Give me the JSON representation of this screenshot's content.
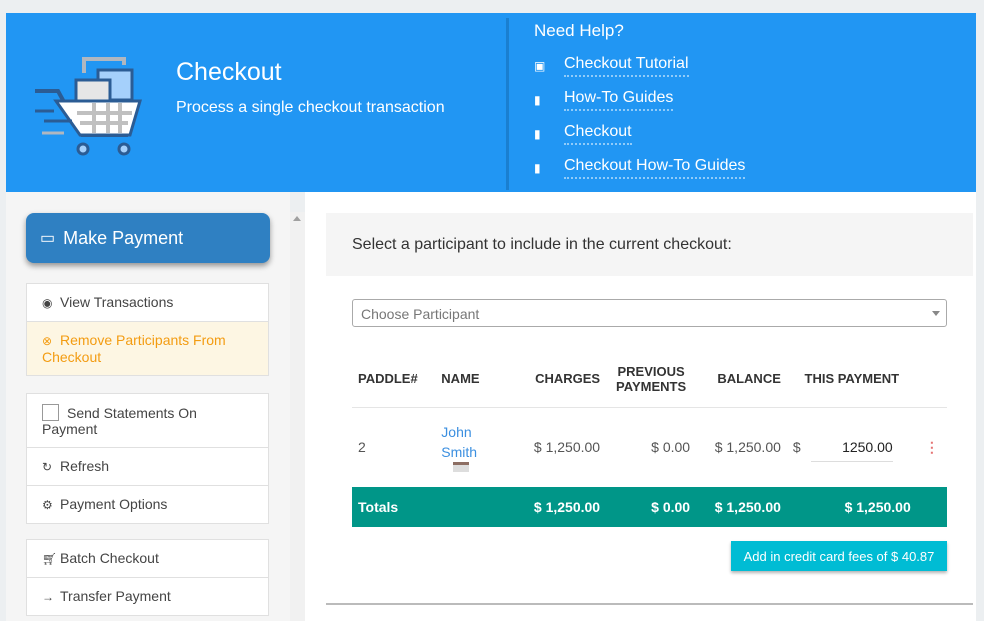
{
  "header": {
    "title": "Checkout",
    "subtitle": "Process a single checkout transaction"
  },
  "help": {
    "title": "Need Help?",
    "links": [
      {
        "icon": "video-icon",
        "label": "Checkout Tutorial"
      },
      {
        "icon": "book-icon",
        "label": "How-To Guides"
      },
      {
        "icon": "book-icon",
        "label": "Checkout"
      },
      {
        "icon": "book-icon",
        "label": "Checkout How-To Guides"
      }
    ]
  },
  "sidebar": {
    "make_payment": "Make Payment",
    "view_transactions": "View Transactions",
    "remove_participants": "Remove Participants From Checkout",
    "send_statements": "Send Statements On Payment",
    "refresh": "Refresh",
    "payment_options": "Payment Options",
    "batch_checkout": "Batch Checkout",
    "transfer_payment": "Transfer Payment"
  },
  "main": {
    "prompt": "Select a participant to include in the current checkout:",
    "participant_placeholder": "Choose Participant",
    "columns": [
      "PADDLE#",
      "NAME",
      "CHARGES",
      "PREVIOUS PAYMENTS",
      "BALANCE",
      "THIS PAYMENT"
    ],
    "rows": [
      {
        "paddle": "2",
        "name": "John Smith",
        "charges": "$ 1,250.00",
        "previous": "$ 0.00",
        "balance": "$ 1,250.00",
        "currency": "$",
        "payment": "1250.00"
      }
    ],
    "totals": {
      "label": "Totals",
      "charges": "$ 1,250.00",
      "previous": "$ 0.00",
      "balance": "$ 1,250.00",
      "payment": "$ 1,250.00"
    },
    "fee_button": "Add in credit card fees of $ 40.87"
  },
  "colors": {
    "header": "#2196f3",
    "totals": "#009688",
    "fee_button": "#00bcd4",
    "make_payment": "#2f80c2",
    "warning": "#f39c12"
  }
}
